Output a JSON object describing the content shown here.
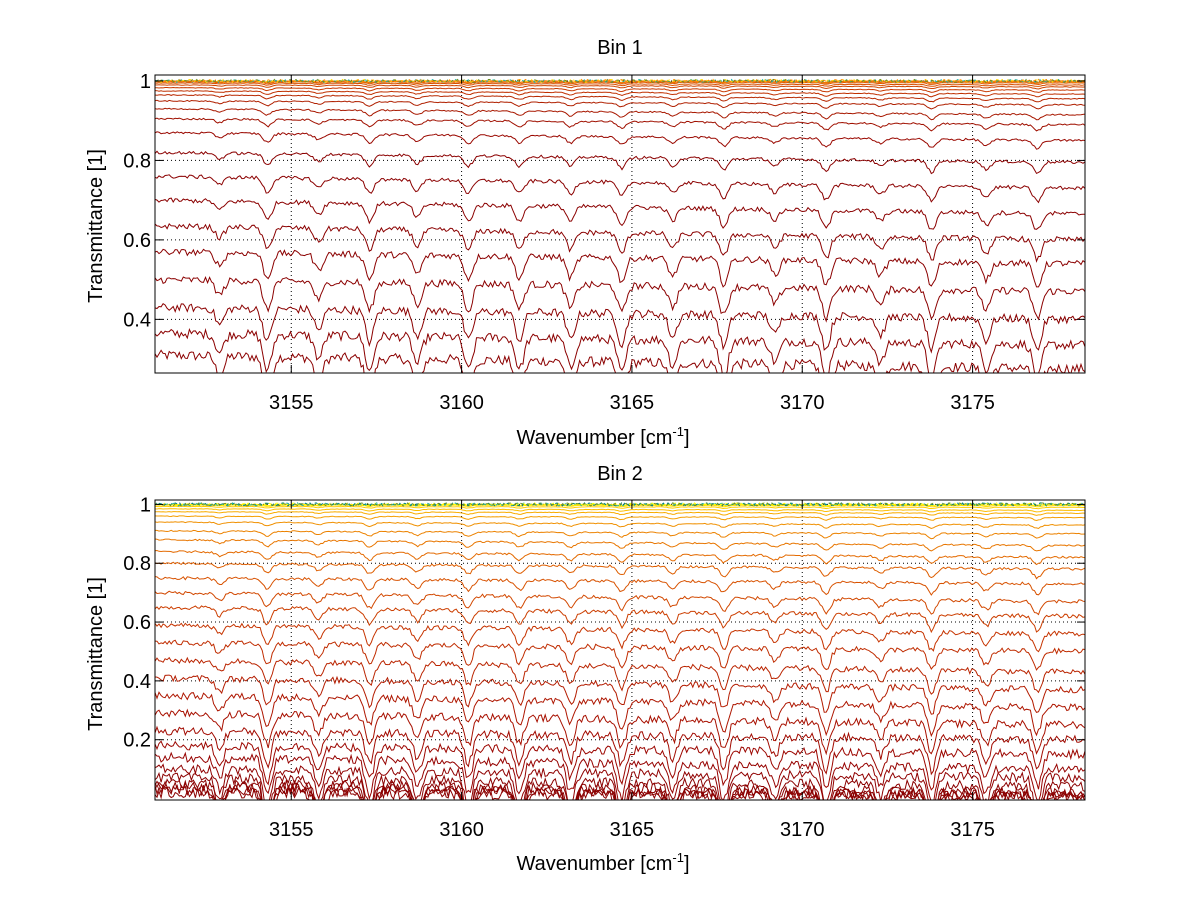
{
  "page": {
    "background": "#ffffff"
  },
  "chart_data": [
    {
      "type": "line",
      "title": "Bin 1",
      "xlabel": "Wavenumber [cm",
      "xlabel_sup": "-1",
      "xlabel_tail": "]",
      "ylabel": "Transmittance [1]",
      "xlim": [
        3151,
        3178.3
      ],
      "ylim": [
        0.265,
        1.015
      ],
      "xticks": [
        3155,
        3160,
        3165,
        3170,
        3175
      ],
      "xtick_labels": [
        "3155",
        "3160",
        "3165",
        "3170",
        "3175"
      ],
      "yticks": [
        0.4,
        0.6,
        0.8,
        1.0
      ],
      "ytick_labels": [
        "0.4",
        "0.6",
        "0.8",
        "1"
      ],
      "grid": true,
      "grid_style": "dotted",
      "absorption_lines": [
        3152.9,
        3154.3,
        3155.8,
        3157.3,
        3158.7,
        3160.2,
        3161.7,
        3163.2,
        3164.7,
        3166.2,
        3167.7,
        3169.2,
        3170.7,
        3172.3,
        3173.8,
        3175.4,
        3176.9
      ],
      "series": [
        {
          "start": 0.31,
          "end": 0.275,
          "color": "#8b0000"
        },
        {
          "start": 0.365,
          "end": 0.335,
          "color": "#8b0000"
        },
        {
          "start": 0.43,
          "end": 0.4,
          "color": "#8b0000"
        },
        {
          "start": 0.5,
          "end": 0.47,
          "color": "#8b0000"
        },
        {
          "start": 0.57,
          "end": 0.54,
          "color": "#8b0000"
        },
        {
          "start": 0.635,
          "end": 0.6,
          "color": "#8b0000"
        },
        {
          "start": 0.7,
          "end": 0.665,
          "color": "#8b0000"
        },
        {
          "start": 0.76,
          "end": 0.73,
          "color": "#8b0000"
        },
        {
          "start": 0.82,
          "end": 0.795,
          "color": "#8b0000"
        },
        {
          "start": 0.87,
          "end": 0.85,
          "color": "#9a0800"
        },
        {
          "start": 0.905,
          "end": 0.89,
          "color": "#a01000"
        },
        {
          "start": 0.93,
          "end": 0.915,
          "color": "#a81800"
        },
        {
          "start": 0.95,
          "end": 0.94,
          "color": "#b02000"
        },
        {
          "start": 0.965,
          "end": 0.955,
          "color": "#b82800"
        },
        {
          "start": 0.975,
          "end": 0.967,
          "color": "#c03000"
        },
        {
          "start": 0.983,
          "end": 0.977,
          "color": "#c83800"
        },
        {
          "start": 0.99,
          "end": 0.985,
          "color": "#d04400"
        },
        {
          "start": 0.995,
          "end": 0.99,
          "color": "#d85000"
        },
        {
          "start": 0.998,
          "end": 0.995,
          "color": "#e05a00"
        },
        {
          "start": 1.0,
          "end": 0.998,
          "color": "#e86800"
        },
        {
          "start": 1.0,
          "end": 1.0,
          "color": "#f07800"
        }
      ],
      "top_noise_colors": [
        "#20b2aa",
        "#ffd700",
        "#ff8c00",
        "#6b8e23"
      ]
    },
    {
      "type": "line",
      "title": "Bin 2",
      "xlabel": "Wavenumber [cm",
      "xlabel_sup": "-1",
      "xlabel_tail": "]",
      "ylabel": "Transmittance [1]",
      "xlim": [
        3151,
        3178.3
      ],
      "ylim": [
        -0.005,
        1.015
      ],
      "xticks": [
        3155,
        3160,
        3165,
        3170,
        3175
      ],
      "xtick_labels": [
        "3155",
        "3160",
        "3165",
        "3170",
        "3175"
      ],
      "yticks": [
        0.2,
        0.4,
        0.6,
        0.8,
        1.0
      ],
      "ytick_labels": [
        "0.2",
        "0.4",
        "0.6",
        "0.8",
        "1"
      ],
      "grid": true,
      "grid_style": "dotted",
      "absorption_lines": [
        3152.9,
        3154.3,
        3155.8,
        3157.3,
        3158.7,
        3160.2,
        3161.7,
        3163.2,
        3164.7,
        3166.2,
        3167.7,
        3169.2,
        3170.7,
        3172.3,
        3173.8,
        3175.4,
        3176.9
      ],
      "series": [
        {
          "start": 0.02,
          "end": 0.005,
          "color": "#8b0000"
        },
        {
          "start": 0.03,
          "end": 0.008,
          "color": "#8b0000"
        },
        {
          "start": 0.04,
          "end": 0.012,
          "color": "#8b0000"
        },
        {
          "start": 0.05,
          "end": 0.02,
          "color": "#8b0000"
        },
        {
          "start": 0.07,
          "end": 0.04,
          "color": "#8b0000"
        },
        {
          "start": 0.1,
          "end": 0.07,
          "color": "#900000"
        },
        {
          "start": 0.14,
          "end": 0.1,
          "color": "#960200"
        },
        {
          "start": 0.18,
          "end": 0.15,
          "color": "#9c0600"
        },
        {
          "start": 0.23,
          "end": 0.2,
          "color": "#a20a00"
        },
        {
          "start": 0.29,
          "end": 0.25,
          "color": "#a81000"
        },
        {
          "start": 0.35,
          "end": 0.31,
          "color": "#ae1600"
        },
        {
          "start": 0.41,
          "end": 0.37,
          "color": "#b41c00"
        },
        {
          "start": 0.47,
          "end": 0.43,
          "color": "#ba2400"
        },
        {
          "start": 0.53,
          "end": 0.5,
          "color": "#c02c00"
        },
        {
          "start": 0.59,
          "end": 0.56,
          "color": "#c63400"
        },
        {
          "start": 0.65,
          "end": 0.62,
          "color": "#cc3e00"
        },
        {
          "start": 0.7,
          "end": 0.67,
          "color": "#d24800"
        },
        {
          "start": 0.75,
          "end": 0.73,
          "color": "#d85200"
        },
        {
          "start": 0.8,
          "end": 0.78,
          "color": "#de5e00"
        },
        {
          "start": 0.84,
          "end": 0.82,
          "color": "#e46a00"
        },
        {
          "start": 0.88,
          "end": 0.86,
          "color": "#e87600"
        },
        {
          "start": 0.91,
          "end": 0.9,
          "color": "#ec8200"
        },
        {
          "start": 0.94,
          "end": 0.93,
          "color": "#f09000"
        },
        {
          "start": 0.96,
          "end": 0.955,
          "color": "#f49e00"
        },
        {
          "start": 0.975,
          "end": 0.97,
          "color": "#f8ac00"
        },
        {
          "start": 0.985,
          "end": 0.98,
          "color": "#fcbc00"
        },
        {
          "start": 0.993,
          "end": 0.99,
          "color": "#ffcc00"
        },
        {
          "start": 0.998,
          "end": 0.996,
          "color": "#ffdc00"
        },
        {
          "start": 1.0,
          "end": 1.0,
          "color": "#ffee00"
        }
      ],
      "top_noise_colors": [
        "#20b2aa",
        "#ffff00",
        "#008080",
        "#6b8e23"
      ]
    }
  ]
}
